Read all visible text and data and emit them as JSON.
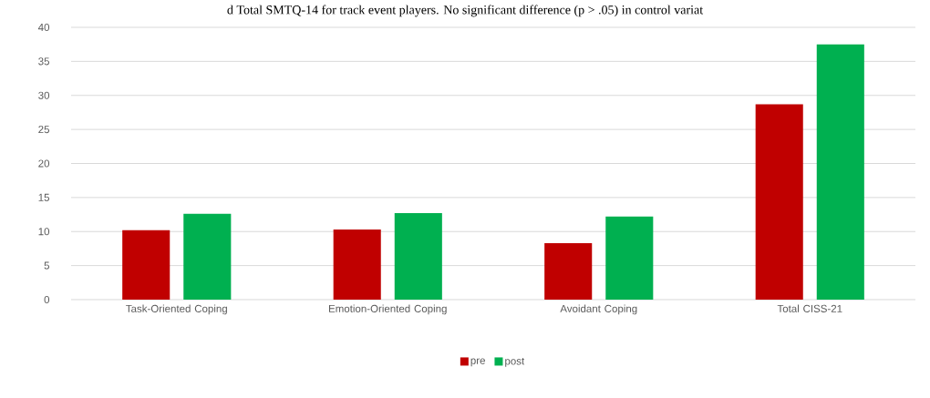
{
  "chart_data": {
    "type": "bar",
    "annotations": [
      "d Total SMTQ-14 for track event players. No significant difference (p > .05) in control variat"
    ],
    "categories": [
      "Task-Oriented Coping",
      "Emotion-Oriented Coping",
      "Avoidant Coping",
      "Total CISS-21"
    ],
    "series": [
      {
        "name": "pre",
        "color": "#c00000",
        "values": [
          10.2,
          10.3,
          8.3,
          28.7
        ]
      },
      {
        "name": "post",
        "color": "#00b050",
        "values": [
          12.6,
          12.7,
          12.2,
          37.5
        ]
      }
    ],
    "ylim": [
      0,
      40
    ],
    "yticks": [
      0,
      5,
      10,
      15,
      20,
      25,
      30,
      35,
      40
    ],
    "grid": "y",
    "legend": "bottom"
  }
}
